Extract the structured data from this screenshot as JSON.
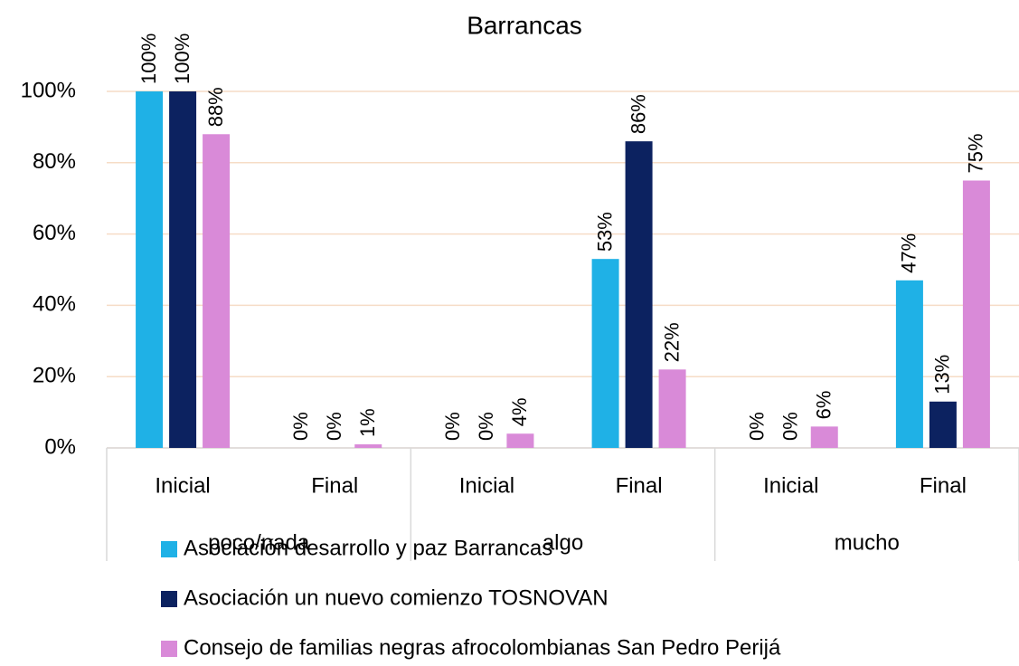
{
  "chart_data": {
    "type": "bar",
    "title": "Barrancas",
    "categories": [
      "Inicial",
      "Final",
      "Inicial",
      "Final",
      "Inicial",
      "Final"
    ],
    "groups": [
      "poco/nada",
      "algo",
      "mucho"
    ],
    "series": [
      {
        "name": "Asociación desarrollo y paz Barrancas",
        "color": "#1fb1e6",
        "values": [
          100,
          0,
          0,
          53,
          0,
          47
        ],
        "value_labels": [
          "100%",
          "0%",
          "0%",
          "53%",
          "0%",
          "47%"
        ]
      },
      {
        "name": "Asociación un nuevo comienzo TOSNOVAN",
        "color": "#0c2260",
        "values": [
          100,
          0,
          0,
          86,
          0,
          13
        ],
        "value_labels": [
          "100%",
          "0%",
          "0%",
          "86%",
          "0%",
          "13%"
        ]
      },
      {
        "name": "Consejo de familias negras afrocolombianas San Pedro Perijá",
        "color": "#d98ad8",
        "values": [
          88,
          1,
          4,
          22,
          6,
          75
        ],
        "value_labels": [
          "88%",
          "1%",
          "4%",
          "22%",
          "6%",
          "75%"
        ]
      }
    ],
    "ylim": [
      0,
      100
    ],
    "yticks": [
      {
        "value": 0,
        "label": "0%"
      },
      {
        "value": 20,
        "label": "20%"
      },
      {
        "value": 40,
        "label": "40%"
      },
      {
        "value": 60,
        "label": "60%"
      },
      {
        "value": 80,
        "label": "80%"
      },
      {
        "value": 100,
        "label": "100%"
      }
    ],
    "grid": true,
    "legend": "bottom"
  }
}
